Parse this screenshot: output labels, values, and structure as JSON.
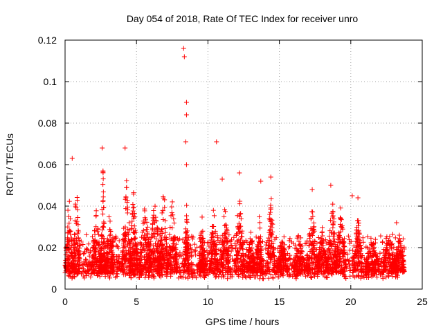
{
  "chart_data": {
    "type": "scatter",
    "title": "Day 054 of 2018, Rate Of TEC Index for receiver unro",
    "xlabel": "GPS time / hours",
    "ylabel": "ROTI / TECUs",
    "xlim": [
      0,
      25
    ],
    "ylim": [
      0,
      0.12
    ],
    "x_ticks": [
      0,
      5,
      10,
      15,
      20,
      25
    ],
    "x_tick_labels": [
      "0",
      "5",
      "10",
      "15",
      "20",
      "25"
    ],
    "y_ticks": [
      0,
      0.02,
      0.04,
      0.06,
      0.08,
      0.1,
      0.12
    ],
    "y_tick_labels": [
      "0",
      "0.02",
      "0.04",
      "0.06",
      "0.08",
      "0.1",
      "0.12"
    ],
    "grid": true,
    "marker": "+",
    "color": "#ff0000",
    "x_data_range": [
      0,
      23.75
    ],
    "baseline_roti_range": [
      0.005,
      0.025
    ],
    "notable_points": [
      {
        "x": 0.2,
        "y": 0.038
      },
      {
        "x": 0.5,
        "y": 0.063
      },
      {
        "x": 2.6,
        "y": 0.068
      },
      {
        "x": 4.2,
        "y": 0.068
      },
      {
        "x": 8.3,
        "y": 0.116
      },
      {
        "x": 8.35,
        "y": 0.112
      },
      {
        "x": 8.5,
        "y": 0.09
      },
      {
        "x": 8.5,
        "y": 0.084
      },
      {
        "x": 8.45,
        "y": 0.071
      },
      {
        "x": 8.5,
        "y": 0.06
      },
      {
        "x": 10.6,
        "y": 0.071
      },
      {
        "x": 11.0,
        "y": 0.053
      },
      {
        "x": 12.2,
        "y": 0.056
      },
      {
        "x": 13.7,
        "y": 0.052
      },
      {
        "x": 14.4,
        "y": 0.054
      },
      {
        "x": 17.3,
        "y": 0.048
      },
      {
        "x": 18.6,
        "y": 0.05
      },
      {
        "x": 20.1,
        "y": 0.045
      },
      {
        "x": 20.5,
        "y": 0.044
      },
      {
        "x": 23.2,
        "y": 0.032
      }
    ],
    "activity_bursts": [
      {
        "center": 0.3,
        "width": 0.25,
        "peak": 0.045
      },
      {
        "center": 0.8,
        "width": 0.25,
        "peak": 0.052
      },
      {
        "center": 2.2,
        "width": 0.35,
        "peak": 0.04
      },
      {
        "center": 2.65,
        "width": 0.15,
        "peak": 0.06
      },
      {
        "center": 3.1,
        "width": 0.3,
        "peak": 0.038
      },
      {
        "center": 4.3,
        "width": 0.35,
        "peak": 0.056
      },
      {
        "center": 4.8,
        "width": 0.3,
        "peak": 0.048
      },
      {
        "center": 5.6,
        "width": 0.45,
        "peak": 0.042
      },
      {
        "center": 6.3,
        "width": 0.45,
        "peak": 0.046
      },
      {
        "center": 6.9,
        "width": 0.35,
        "peak": 0.05
      },
      {
        "center": 7.5,
        "width": 0.35,
        "peak": 0.044
      },
      {
        "center": 8.5,
        "width": 0.15,
        "peak": 0.042
      },
      {
        "center": 9.6,
        "width": 0.25,
        "peak": 0.036
      },
      {
        "center": 10.4,
        "width": 0.3,
        "peak": 0.04
      },
      {
        "center": 11.2,
        "width": 0.3,
        "peak": 0.045
      },
      {
        "center": 12.2,
        "width": 0.35,
        "peak": 0.05
      },
      {
        "center": 13.0,
        "width": 0.3,
        "peak": 0.03
      },
      {
        "center": 13.6,
        "width": 0.2,
        "peak": 0.036
      },
      {
        "center": 14.4,
        "width": 0.3,
        "peak": 0.048
      },
      {
        "center": 15.2,
        "width": 0.4,
        "peak": 0.024
      },
      {
        "center": 16.4,
        "width": 0.4,
        "peak": 0.024
      },
      {
        "center": 17.3,
        "width": 0.4,
        "peak": 0.04
      },
      {
        "center": 18.0,
        "width": 0.35,
        "peak": 0.03
      },
      {
        "center": 18.7,
        "width": 0.35,
        "peak": 0.046
      },
      {
        "center": 19.3,
        "width": 0.35,
        "peak": 0.04
      },
      {
        "center": 20.5,
        "width": 0.3,
        "peak": 0.038
      },
      {
        "center": 21.5,
        "width": 0.5,
        "peak": 0.024
      },
      {
        "center": 22.7,
        "width": 0.5,
        "peak": 0.026
      },
      {
        "center": 23.4,
        "width": 0.35,
        "peak": 0.028
      }
    ]
  }
}
